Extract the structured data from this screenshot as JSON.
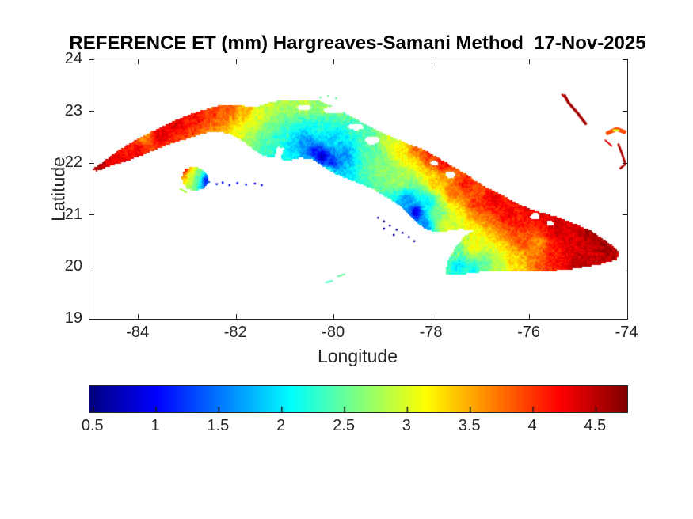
{
  "style": {
    "background": "#ffffff",
    "axes_line_color": "#262626",
    "label_color": "#262626",
    "title_color": "#000000",
    "colormap_ends": {
      "low": "#00008f",
      "high": "#800000"
    }
  },
  "chart_data": {
    "type": "heatmap",
    "title": "REFERENCE ET (mm) Hargreaves-Samani Method  17-Nov-2025",
    "method": "Hargreaves-Samani",
    "variable": "REFERENCE ET",
    "units": "mm",
    "date": "17-Nov-2025",
    "region": "Cuba",
    "xlabel": "Longitude",
    "ylabel": "Latitude",
    "xlim": [
      -85,
      -74
    ],
    "ylim": [
      19,
      24
    ],
    "x_ticks": [
      -84,
      -82,
      -80,
      -78,
      -76,
      -74
    ],
    "x_tick_labels": [
      "-84",
      "-82",
      "-80",
      "-78",
      "-76",
      "-74"
    ],
    "y_ticks": [
      19,
      20,
      21,
      22,
      23,
      24
    ],
    "y_tick_labels": [
      "19",
      "20",
      "21",
      "22",
      "23",
      "24"
    ],
    "grid": false,
    "colormap": "jet",
    "colorbar": {
      "orientation": "horizontal",
      "position": "bottom",
      "vmin": 0.47,
      "vmax": 4.75,
      "ticks": [
        0.5,
        1,
        1.5,
        2,
        2.5,
        3,
        3.5,
        4,
        4.5
      ],
      "tick_labels": [
        "0.5",
        "1",
        "1.5",
        "2",
        "2.5",
        "3",
        "3.5",
        "4",
        "4.5"
      ]
    },
    "et_field_samples": [
      [
        -84.9,
        21.9,
        4.6
      ],
      [
        -84.55,
        22.1,
        4.35
      ],
      [
        -84.2,
        22.3,
        4.1
      ],
      [
        -84.05,
        22.2,
        4.3
      ],
      [
        -83.9,
        22.5,
        3.7
      ],
      [
        -83.55,
        22.55,
        4.3
      ],
      [
        -83.2,
        22.75,
        4.3
      ],
      [
        -82.85,
        22.9,
        4.15
      ],
      [
        -82.5,
        23.0,
        4.0
      ],
      [
        -82.15,
        23.05,
        3.85
      ],
      [
        -81.8,
        23.02,
        3.45
      ],
      [
        -81.55,
        22.9,
        3.0
      ],
      [
        -81.35,
        23.12,
        2.95
      ],
      [
        -81.3,
        22.65,
        2.5
      ],
      [
        -81.0,
        23.15,
        2.8
      ],
      [
        -80.6,
        23.15,
        2.85
      ],
      [
        -80.2,
        23.1,
        2.7
      ],
      [
        -79.85,
        22.95,
        2.5
      ],
      [
        -79.5,
        22.78,
        2.4
      ],
      [
        -81.1,
        22.45,
        2.25
      ],
      [
        -80.85,
        22.3,
        1.9
      ],
      [
        -80.6,
        22.35,
        1.6
      ],
      [
        -80.42,
        22.22,
        1.05
      ],
      [
        -80.25,
        22.12,
        0.85
      ],
      [
        -80.05,
        22.0,
        1.15
      ],
      [
        -79.8,
        22.15,
        1.65
      ],
      [
        -79.95,
        22.45,
        1.95
      ],
      [
        -80.3,
        22.6,
        2.15
      ],
      [
        -80.1,
        21.85,
        2.25
      ],
      [
        -80.5,
        22.02,
        1.95
      ],
      [
        -81.25,
        22.2,
        2.3
      ],
      [
        -81.0,
        22.08,
        2.15
      ],
      [
        -79.35,
        22.35,
        2.35
      ],
      [
        -79.1,
        22.2,
        2.55
      ],
      [
        -78.85,
        22.35,
        3.0
      ],
      [
        -78.6,
        22.2,
        3.2
      ],
      [
        -78.35,
        22.3,
        3.75
      ],
      [
        -78.05,
        22.15,
        4.0
      ],
      [
        -77.75,
        22.0,
        4.15
      ],
      [
        -78.9,
        21.9,
        2.65
      ],
      [
        -78.65,
        21.7,
        2.75
      ],
      [
        -78.33,
        21.05,
        0.95
      ],
      [
        -78.5,
        21.28,
        1.65
      ],
      [
        -78.52,
        20.95,
        1.8
      ],
      [
        -78.15,
        20.82,
        1.6
      ],
      [
        -78.08,
        21.25,
        2.05
      ],
      [
        -77.9,
        21.0,
        2.55
      ],
      [
        -77.7,
        20.82,
        3.05
      ],
      [
        -77.9,
        21.6,
        3.35
      ],
      [
        -77.55,
        21.45,
        3.8
      ],
      [
        -77.3,
        21.62,
        4.1
      ],
      [
        -77.05,
        21.25,
        4.0
      ],
      [
        -76.75,
        21.3,
        4.3
      ],
      [
        -76.45,
        21.05,
        4.25
      ],
      [
        -76.15,
        20.9,
        4.15
      ],
      [
        -76.0,
        21.25,
        4.5
      ],
      [
        -75.7,
        21.0,
        4.35
      ],
      [
        -75.45,
        20.75,
        4.45
      ],
      [
        -75.1,
        20.6,
        4.35
      ],
      [
        -74.8,
        20.62,
        4.55
      ],
      [
        -74.45,
        20.4,
        4.6
      ],
      [
        -74.22,
        20.24,
        4.5
      ],
      [
        -74.7,
        20.2,
        4.4
      ],
      [
        -75.0,
        20.1,
        4.55
      ],
      [
        -75.45,
        20.2,
        4.15
      ],
      [
        -75.85,
        20.45,
        3.6
      ],
      [
        -76.1,
        20.55,
        3.9
      ],
      [
        -77.45,
        20.02,
        2.0
      ],
      [
        -77.15,
        19.95,
        2.15
      ],
      [
        -76.9,
        20.05,
        2.5
      ],
      [
        -76.6,
        20.05,
        2.85
      ],
      [
        -76.3,
        20.12,
        3.3
      ],
      [
        -77.5,
        20.3,
        2.55
      ],
      [
        -77.15,
        20.4,
        3.1
      ],
      [
        -83.05,
        21.87,
        4.1
      ],
      [
        -82.93,
        21.78,
        3.1
      ],
      [
        -82.78,
        21.72,
        2.5
      ],
      [
        -82.62,
        21.66,
        1.2
      ]
    ],
    "coastline_cuba": [
      [
        -84.95,
        21.88
      ],
      [
        -84.72,
        22.02
      ],
      [
        -84.45,
        22.22
      ],
      [
        -84.1,
        22.42
      ],
      [
        -83.75,
        22.6
      ],
      [
        -83.35,
        22.78
      ],
      [
        -83.0,
        22.92
      ],
      [
        -82.65,
        23.03
      ],
      [
        -82.3,
        23.12
      ],
      [
        -81.95,
        23.12
      ],
      [
        -81.65,
        23.07
      ],
      [
        -81.35,
        23.16
      ],
      [
        -81.05,
        23.22
      ],
      [
        -80.65,
        23.22
      ],
      [
        -80.3,
        23.2
      ],
      [
        -80.05,
        23.1
      ],
      [
        -79.8,
        22.98
      ],
      [
        -79.55,
        22.85
      ],
      [
        -79.3,
        22.72
      ],
      [
        -79.0,
        22.58
      ],
      [
        -78.7,
        22.46
      ],
      [
        -78.45,
        22.36
      ],
      [
        -78.15,
        22.26
      ],
      [
        -77.9,
        22.12
      ],
      [
        -77.65,
        21.98
      ],
      [
        -77.35,
        21.82
      ],
      [
        -77.1,
        21.66
      ],
      [
        -76.85,
        21.52
      ],
      [
        -76.55,
        21.38
      ],
      [
        -76.25,
        21.22
      ],
      [
        -75.95,
        21.1
      ],
      [
        -75.65,
        21.02
      ],
      [
        -75.35,
        20.94
      ],
      [
        -75.05,
        20.82
      ],
      [
        -74.75,
        20.7
      ],
      [
        -74.5,
        20.55
      ],
      [
        -74.3,
        20.4
      ],
      [
        -74.16,
        20.28
      ],
      [
        -74.22,
        20.14
      ],
      [
        -74.5,
        20.06
      ],
      [
        -74.85,
        20.0
      ],
      [
        -75.25,
        19.94
      ],
      [
        -75.65,
        19.92
      ],
      [
        -76.05,
        19.93
      ],
      [
        -76.45,
        19.92
      ],
      [
        -76.85,
        19.92
      ],
      [
        -77.2,
        19.88
      ],
      [
        -77.5,
        19.84
      ],
      [
        -77.72,
        19.86
      ],
      [
        -77.68,
        20.08
      ],
      [
        -77.54,
        20.34
      ],
      [
        -77.32,
        20.6
      ],
      [
        -77.16,
        20.7
      ],
      [
        -77.4,
        20.73
      ],
      [
        -77.7,
        20.69
      ],
      [
        -78.0,
        20.69
      ],
      [
        -78.18,
        20.76
      ],
      [
        -78.45,
        20.98
      ],
      [
        -78.65,
        21.18
      ],
      [
        -78.9,
        21.33
      ],
      [
        -79.2,
        21.5
      ],
      [
        -79.55,
        21.63
      ],
      [
        -79.95,
        21.78
      ],
      [
        -80.25,
        21.95
      ],
      [
        -80.45,
        22.08
      ],
      [
        -80.7,
        22.1
      ],
      [
        -80.95,
        22.04
      ],
      [
        -81.1,
        22.08
      ],
      [
        -81.03,
        22.28
      ],
      [
        -81.15,
        22.32
      ],
      [
        -81.22,
        22.1
      ],
      [
        -81.45,
        22.14
      ],
      [
        -81.7,
        22.3
      ],
      [
        -81.95,
        22.48
      ],
      [
        -82.2,
        22.58
      ],
      [
        -82.55,
        22.6
      ],
      [
        -82.9,
        22.5
      ],
      [
        -83.25,
        22.4
      ],
      [
        -83.6,
        22.28
      ],
      [
        -83.95,
        22.14
      ],
      [
        -84.3,
        22.02
      ],
      [
        -84.6,
        21.94
      ],
      [
        -84.85,
        21.84
      ]
    ],
    "coastline_isla_juventud": [
      [
        -83.12,
        21.72
      ],
      [
        -83.05,
        21.88
      ],
      [
        -82.9,
        21.94
      ],
      [
        -82.72,
        21.9
      ],
      [
        -82.58,
        21.78
      ],
      [
        -82.55,
        21.62
      ],
      [
        -82.68,
        21.5
      ],
      [
        -82.88,
        21.46
      ],
      [
        -83.02,
        21.52
      ],
      [
        -83.08,
        21.6
      ]
    ],
    "water_bodies": [
      {
        "lon": -80.0,
        "lat": 23.02,
        "rx": 0.22,
        "ry": 0.07
      },
      {
        "lon": -80.62,
        "lat": 23.07,
        "rx": 0.14,
        "ry": 0.05
      },
      {
        "lon": -79.55,
        "lat": 22.7,
        "rx": 0.16,
        "ry": 0.06
      },
      {
        "lon": -79.22,
        "lat": 22.44,
        "rx": 0.14,
        "ry": 0.08
      },
      {
        "lon": -77.62,
        "lat": 21.78,
        "rx": 0.1,
        "ry": 0.07
      },
      {
        "lon": -77.95,
        "lat": 22.0,
        "rx": 0.08,
        "ry": 0.05
      },
      {
        "lon": -75.88,
        "lat": 20.98,
        "rx": 0.1,
        "ry": 0.06
      },
      {
        "lon": -75.58,
        "lat": 20.84,
        "rx": 0.07,
        "ry": 0.05
      }
    ],
    "minor_islands": [
      {
        "name": "long-island-hook",
        "style": "line",
        "width": 3.5,
        "et_mm": 4.6,
        "points": [
          [
            -75.28,
            23.3
          ],
          [
            -75.2,
            23.16
          ],
          [
            -75.02,
            22.97
          ],
          [
            -74.85,
            22.76
          ]
        ]
      },
      {
        "name": "long-island-prong",
        "style": "line",
        "width": 2.5,
        "et_mm": 4.55,
        "points": [
          [
            -75.33,
            23.32
          ],
          [
            -75.24,
            23.24
          ]
        ]
      },
      {
        "name": "crooked-island",
        "style": "line",
        "width": 5,
        "et_mm": 3.9,
        "points": [
          [
            -74.4,
            22.58
          ],
          [
            -74.22,
            22.66
          ],
          [
            -74.06,
            22.6
          ]
        ]
      },
      {
        "name": "crooked-island-core",
        "style": "line",
        "width": 2.5,
        "et_mm": 3.0,
        "points": [
          [
            -74.28,
            22.63
          ],
          [
            -74.18,
            22.63
          ]
        ]
      },
      {
        "name": "small-cay-streak",
        "style": "line",
        "width": 2,
        "et_mm": 4.3,
        "points": [
          [
            -74.45,
            22.44
          ],
          [
            -74.32,
            22.33
          ]
        ]
      },
      {
        "name": "acklins-island",
        "style": "line",
        "width": 2.8,
        "et_mm": 4.55,
        "points": [
          [
            -74.18,
            22.36
          ],
          [
            -74.1,
            22.16
          ],
          [
            -74.04,
            21.98
          ],
          [
            -74.14,
            21.9
          ]
        ]
      },
      {
        "name": "jardines-de-la-reina-cays",
        "style": "dots",
        "width": 2,
        "et_mm": 0.55,
        "points": [
          [
            -79.1,
            20.95
          ],
          [
            -78.98,
            20.88
          ],
          [
            -78.86,
            20.8
          ],
          [
            -78.72,
            20.72
          ],
          [
            -78.6,
            20.66
          ],
          [
            -78.47,
            20.58
          ],
          [
            -78.36,
            20.5
          ],
          [
            -78.98,
            20.74
          ],
          [
            -78.78,
            20.62
          ]
        ]
      },
      {
        "name": "canarreos-cays",
        "style": "dots",
        "width": 2,
        "et_mm": 1.0,
        "points": [
          [
            -82.4,
            21.6
          ],
          [
            -82.28,
            21.63
          ],
          [
            -82.14,
            21.58
          ],
          [
            -81.98,
            21.62
          ],
          [
            -81.8,
            21.59
          ],
          [
            -81.62,
            21.61
          ],
          [
            -81.48,
            21.58
          ]
        ]
      },
      {
        "name": "isla-southwest-tail",
        "style": "line",
        "width": 2.5,
        "et_mm": 2.8,
        "points": [
          [
            -83.14,
            21.5
          ],
          [
            -83.02,
            21.44
          ]
        ]
      },
      {
        "name": "cayman-brac",
        "style": "line",
        "width": 2,
        "et_mm": 2.5,
        "points": [
          [
            -79.92,
            19.82
          ],
          [
            -79.78,
            19.86
          ]
        ]
      },
      {
        "name": "little-cayman",
        "style": "line",
        "width": 2,
        "et_mm": 2.3,
        "points": [
          [
            -80.16,
            19.7
          ],
          [
            -80.04,
            19.73
          ]
        ]
      },
      {
        "name": "north-coast-green-cays",
        "style": "dots",
        "width": 2,
        "et_mm": 2.5,
        "points": [
          [
            -80.28,
            23.27
          ],
          [
            -80.12,
            23.3
          ],
          [
            -79.96,
            23.26
          ]
        ]
      }
    ]
  }
}
